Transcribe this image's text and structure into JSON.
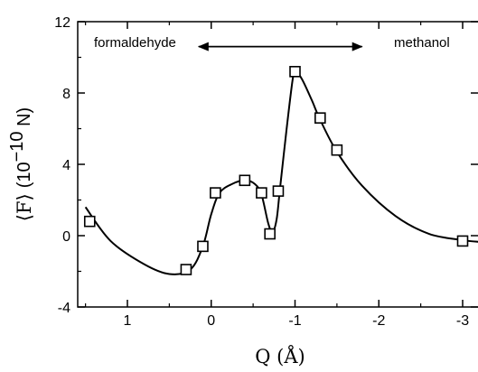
{
  "chart_data": {
    "type": "scatter",
    "x_reversed": true,
    "xlim": [
      1.5,
      -3.2
    ],
    "ylim": [
      -4,
      12
    ],
    "x_ticks": [
      1,
      0,
      -1,
      -2,
      -3
    ],
    "x_tick_labels": [
      "1",
      "0",
      "-1",
      "-2",
      "-3"
    ],
    "y_ticks": [
      -4,
      0,
      4,
      8,
      12
    ],
    "y_tick_labels": [
      "-4",
      "0",
      "4",
      "8",
      "12"
    ],
    "xlabel": "Q (Å)",
    "ylabel": {
      "symbol": "⟨F⟩",
      "unit_prefix": "(10",
      "unit_exp": "−10",
      "unit_suffix": " N)"
    },
    "annotations": {
      "left": "formaldehyde",
      "right": "methanol",
      "arrow": "double-headed",
      "arrow_from_x": 0.15,
      "arrow_to_x": -1.8,
      "arrow_y": 10.6
    },
    "grid": false,
    "legend": "none",
    "series": [
      {
        "marker": "open-square",
        "line": "smooth-fit",
        "points": [
          {
            "x": 1.45,
            "y": 0.8
          },
          {
            "x": 0.3,
            "y": -1.9
          },
          {
            "x": 0.1,
            "y": -0.6
          },
          {
            "x": -0.05,
            "y": 2.4
          },
          {
            "x": -0.4,
            "y": 3.1
          },
          {
            "x": -0.6,
            "y": 2.4
          },
          {
            "x": -0.7,
            "y": 0.1
          },
          {
            "x": -0.8,
            "y": 2.5
          },
          {
            "x": -1.0,
            "y": 9.2
          },
          {
            "x": -1.3,
            "y": 6.6
          },
          {
            "x": -1.5,
            "y": 4.8
          },
          {
            "x": -3.0,
            "y": -0.3
          }
        ]
      }
    ],
    "fit_curve": [
      [
        1.5,
        1.6
      ],
      [
        1.2,
        -0.3
      ],
      [
        0.8,
        -1.6
      ],
      [
        0.5,
        -2.15
      ],
      [
        0.25,
        -1.9
      ],
      [
        0.1,
        -0.6
      ],
      [
        0.0,
        1.2
      ],
      [
        -0.1,
        2.4
      ],
      [
        -0.25,
        2.9
      ],
      [
        -0.4,
        3.1
      ],
      [
        -0.52,
        2.9
      ],
      [
        -0.6,
        2.3
      ],
      [
        -0.68,
        0.7
      ],
      [
        -0.73,
        0.2
      ],
      [
        -0.78,
        0.9
      ],
      [
        -0.82,
        2.6
      ],
      [
        -0.9,
        6.0
      ],
      [
        -0.97,
        8.7
      ],
      [
        -1.0,
        9.2
      ],
      [
        -1.08,
        8.8
      ],
      [
        -1.2,
        7.6
      ],
      [
        -1.3,
        6.5
      ],
      [
        -1.5,
        4.7
      ],
      [
        -1.8,
        2.8
      ],
      [
        -2.2,
        1.1
      ],
      [
        -2.6,
        0.1
      ],
      [
        -3.0,
        -0.25
      ],
      [
        -3.2,
        -0.35
      ]
    ]
  }
}
